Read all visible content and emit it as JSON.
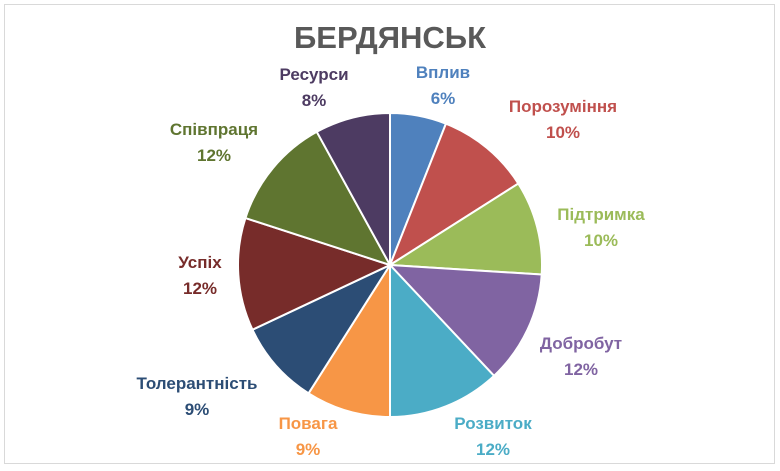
{
  "chart_data": {
    "type": "pie",
    "title": "БЕРДЯНСЬК",
    "slices": [
      {
        "label": "Вплив",
        "value": 6,
        "percent_label": "6%",
        "color": "#4f81bd"
      },
      {
        "label": "Порозуміння",
        "value": 10,
        "percent_label": "10%",
        "color": "#c0504d"
      },
      {
        "label": "Підтримка",
        "value": 10,
        "percent_label": "10%",
        "color": "#9bbb59"
      },
      {
        "label": "Добробут",
        "value": 12,
        "percent_label": "12%",
        "color": "#8064a2"
      },
      {
        "label": "Розвиток",
        "value": 12,
        "percent_label": "12%",
        "color": "#4bacc6"
      },
      {
        "label": "Повага",
        "value": 9,
        "percent_label": "9%",
        "color": "#f79646"
      },
      {
        "label": "Толерантність",
        "value": 9,
        "percent_label": "9%",
        "color": "#2c4d75"
      },
      {
        "label": "Успіх",
        "value": 12,
        "percent_label": "12%",
        "color": "#772c2a"
      },
      {
        "label": "Співпраця",
        "value": 12,
        "percent_label": "12%",
        "color": "#5f7530"
      },
      {
        "label": "Ресурси",
        "value": 8,
        "percent_label": "8%",
        "color": "#4d3b62"
      }
    ],
    "legend": "none",
    "data_labels": "outside, category name and percentage"
  }
}
